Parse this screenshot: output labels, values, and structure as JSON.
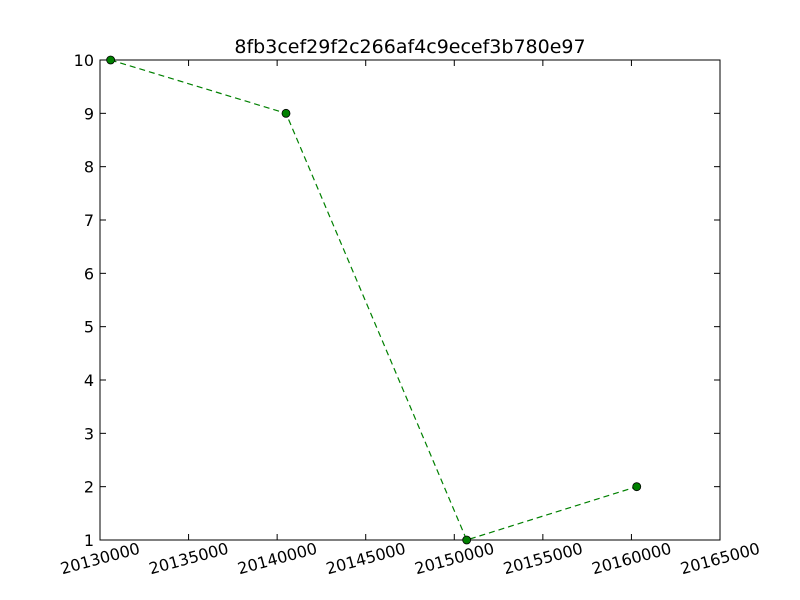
{
  "chart_data": {
    "type": "line",
    "title": "8fb3cef29f2c266af4c9ecef3b780e97",
    "xlabel": "",
    "ylabel": "",
    "xlim": [
      20130000,
      20165000
    ],
    "ylim": [
      1,
      10
    ],
    "x_ticks": [
      20130000,
      20135000,
      20140000,
      20145000,
      20150000,
      20155000,
      20160000,
      20165000
    ],
    "y_ticks": [
      1,
      2,
      3,
      4,
      5,
      6,
      7,
      8,
      9,
      10
    ],
    "grid": false,
    "series": [
      {
        "x": [
          20130600,
          20140500,
          20150700,
          20160300
        ],
        "y": [
          10,
          9,
          1,
          2
        ],
        "color": "#008000",
        "line_style": "dashed",
        "marker": "circle"
      }
    ]
  }
}
